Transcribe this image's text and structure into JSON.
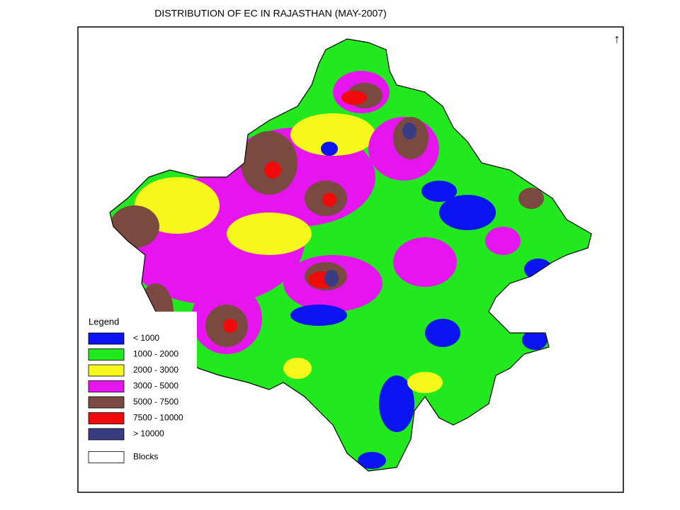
{
  "title": "DISTRIBUTION OF EC IN RAJASTHAN (MAY-2007)",
  "legend": {
    "title": "Legend",
    "items": [
      {
        "label": "< 1000",
        "color": "#0a14f0"
      },
      {
        "label": "1000 - 2000",
        "color": "#22e81e"
      },
      {
        "label": "2000 - 3000",
        "color": "#f6f71a"
      },
      {
        "label": "3000 - 5000",
        "color": "#e614ee"
      },
      {
        "label": "5000 - 7500",
        "color": "#7a4a40"
      },
      {
        "label": "7500 - 10000",
        "color": "#f00a0a"
      },
      {
        "label": "> 10000",
        "color": "#3a3c82"
      },
      {
        "label": "Blocks",
        "color": "#ffffff"
      }
    ]
  }
}
